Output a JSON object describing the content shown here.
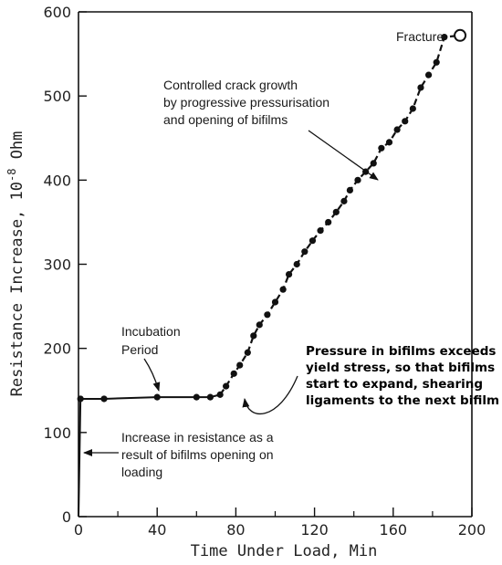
{
  "chart_data": {
    "type": "line",
    "xlabel": "Time Under Load, Min",
    "ylabel": "Resistance Increase, 10",
    "ylabel_exponent": "-8",
    "ylabel_unit": " Ohm",
    "xlim": [
      0,
      200
    ],
    "ylim": [
      0,
      600
    ],
    "x_ticks": [
      0,
      40,
      80,
      120,
      160,
      200
    ],
    "x_minor_ticks": [
      20,
      60,
      100,
      140,
      180
    ],
    "y_ticks": [
      0,
      100,
      200,
      300,
      400,
      500,
      600
    ],
    "grid": false,
    "series": [
      {
        "x": [
          0,
          1,
          13,
          40,
          60,
          67,
          72,
          75,
          79,
          82,
          86,
          89,
          92,
          96,
          100,
          104,
          107,
          111,
          115,
          119,
          123,
          127,
          131,
          135,
          138,
          142,
          146,
          150,
          154,
          158,
          162,
          166,
          170,
          174,
          178,
          182,
          186
        ],
        "y": [
          0,
          140,
          140,
          142,
          142,
          142,
          145,
          155,
          170,
          180,
          195,
          215,
          228,
          240,
          255,
          270,
          288,
          300,
          315,
          328,
          340,
          350,
          362,
          375,
          388,
          400,
          410,
          420,
          438,
          445,
          460,
          470,
          485,
          510,
          525,
          540,
          570
        ]
      }
    ],
    "open_markers": [
      {
        "x": 194,
        "y": 572
      }
    ],
    "annotations": {
      "fracture": "Fracture",
      "crack_growth": [
        "Controlled crack growth",
        "by progressive pressurisation",
        "and opening of bifilms"
      ],
      "incubation": [
        "Incubation",
        "Period"
      ],
      "initial_increase": [
        "Increase in resistance as a",
        "result of bifilms opening on",
        "loading"
      ],
      "pressure": [
        "Pressure in bifilms exceeds",
        "yield stress, so that bifilms",
        "start to expand, shearing",
        "ligaments to the next bifilm"
      ]
    }
  }
}
